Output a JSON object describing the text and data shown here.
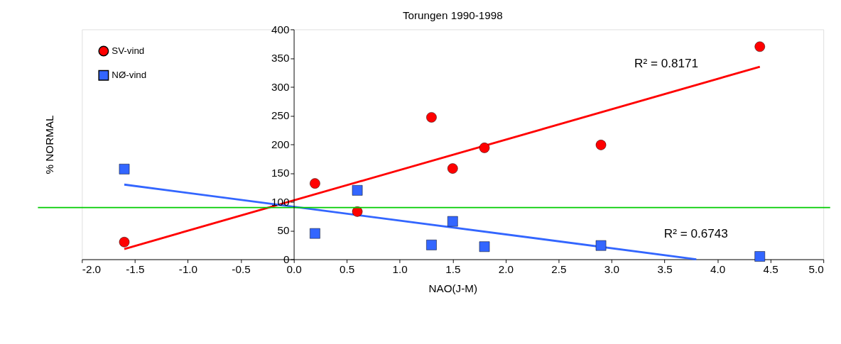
{
  "chart_data": {
    "type": "scatter",
    "title": "Torungen 1990-1998",
    "xlabel": "NAO(J-M)",
    "ylabel": "% NORMAL",
    "xlim": [
      -2.0,
      5.0
    ],
    "xticks": [
      {
        "value": -2,
        "label": "-2.0"
      },
      {
        "value": -1.5,
        "label": "-1.5"
      },
      {
        "value": -1,
        "label": "-1.0"
      },
      {
        "value": -0.5,
        "label": "-0.5"
      },
      {
        "value": 0,
        "label": "0.0"
      },
      {
        "value": 0.5,
        "label": "0.5"
      },
      {
        "value": 1,
        "label": "1.0"
      },
      {
        "value": 1.5,
        "label": "1.5"
      },
      {
        "value": 2,
        "label": "2.0"
      },
      {
        "value": 2.5,
        "label": "2.5"
      },
      {
        "value": 3,
        "label": "3.0"
      },
      {
        "value": 3.5,
        "label": "3.5"
      },
      {
        "value": 4,
        "label": "4.0"
      },
      {
        "value": 4.5,
        "label": "4.5"
      },
      {
        "value": 5,
        "label": "5.0"
      }
    ],
    "ylim": [
      0,
      400
    ],
    "yticks": [
      0,
      50,
      100,
      150,
      200,
      250,
      300,
      350,
      400
    ],
    "grid": false,
    "legend": "top left",
    "x": [
      -1.6,
      0.2,
      0.6,
      1.3,
      1.5,
      1.8,
      2.9,
      4.4
    ],
    "series": [
      {
        "name": "SV-vind",
        "color": "#ff0000",
        "marker": "circle",
        "values": [
          30,
          132,
          83,
          247,
          158,
          194,
          199,
          370
        ]
      },
      {
        "name": "NØ-vind",
        "color": "#3366ff",
        "marker": "square",
        "values": [
          157,
          45,
          120,
          25,
          66,
          22,
          24,
          5
        ]
      },
      {
        "type": "line",
        "color": "#ff0000",
        "x": [
          -1.6,
          4.4
        ],
        "values": [
          18,
          335
        ]
      },
      {
        "type": "line",
        "color": "#3366ff",
        "x": [
          -1.6,
          3.8
        ],
        "values": [
          130,
          0
        ]
      }
    ],
    "ref_lines": [
      {
        "axis": "y",
        "value": 90,
        "color": "#00cc00"
      }
    ],
    "annotations": [
      "R² = 0.8171",
      "R² = 0.6743"
    ]
  }
}
